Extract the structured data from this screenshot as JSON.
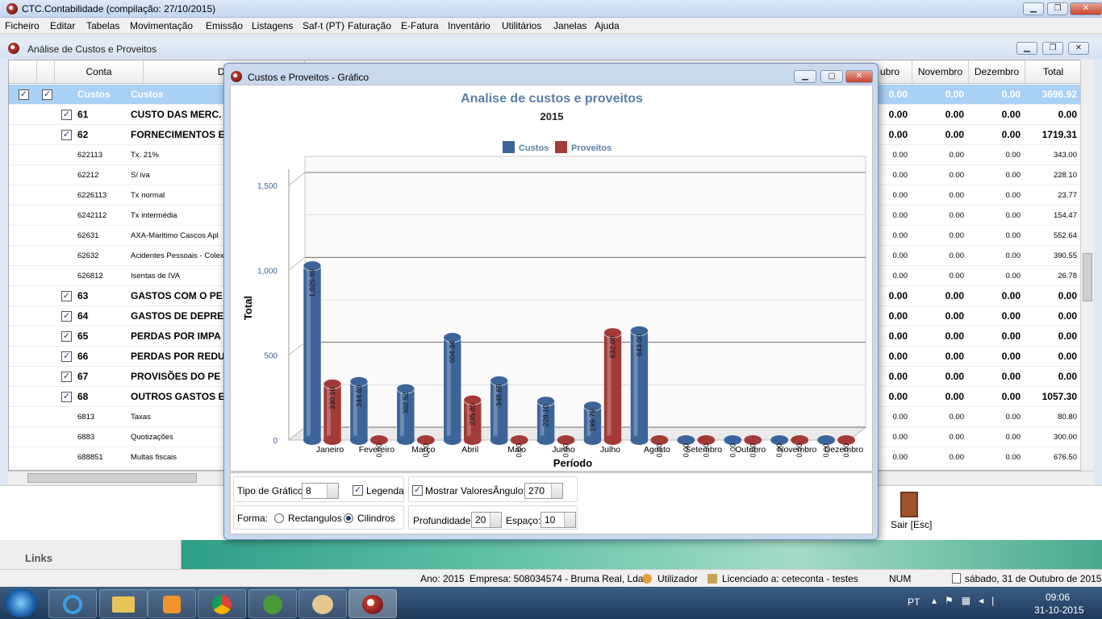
{
  "app": {
    "title": "CTC.Contabilidade (compilação: 27/10/2015)"
  },
  "menu": [
    "Ficheiro",
    "Editar",
    "Tabelas",
    "Movimentação",
    "Emissão",
    "Listagens",
    "Saf-t (PT)",
    "Faturação",
    "E-Fatura",
    "Inventário",
    "Utilitários",
    "Janelas",
    "Ajuda"
  ],
  "child_window": {
    "title": "Análise de Custos e Proveitos"
  },
  "grid": {
    "headers": {
      "conta": "Conta",
      "desc": "De",
      "outubro": "ubro",
      "novembro": "Novembro",
      "dezembro": "Dezembro",
      "total": "Total"
    },
    "rows": [
      {
        "conta": "Custos",
        "desc": "Custos",
        "out": "0.00",
        "nov": "0.00",
        "dez": "0.00",
        "total": "3696.92",
        "level": "sel"
      },
      {
        "conta": "61",
        "desc": "CUSTO DAS MERC.",
        "out": "0.00",
        "nov": "0.00",
        "dez": "0.00",
        "total": "0.00",
        "level": "bold"
      },
      {
        "conta": "62",
        "desc": "FORNECIMENTOS E",
        "out": "0.00",
        "nov": "0.00",
        "dez": "0.00",
        "total": "1719.31",
        "level": "bold"
      },
      {
        "conta": "622113",
        "desc": "Tx. 21%",
        "out": "0.00",
        "nov": "0.00",
        "dez": "0.00",
        "total": "343.00",
        "level": "small"
      },
      {
        "conta": "62212",
        "desc": "S/ iva",
        "out": "0.00",
        "nov": "0.00",
        "dez": "0.00",
        "total": "228.10",
        "level": "small"
      },
      {
        "conta": "6226113",
        "desc": "Tx normal",
        "out": "0.00",
        "nov": "0.00",
        "dez": "0.00",
        "total": "23.77",
        "level": "small"
      },
      {
        "conta": "6242112",
        "desc": "Tx intermédia",
        "out": "0.00",
        "nov": "0.00",
        "dez": "0.00",
        "total": "154.47",
        "level": "small"
      },
      {
        "conta": "62631",
        "desc": "AXA-Maritimo Cascos Apl",
        "out": "0.00",
        "nov": "0.00",
        "dez": "0.00",
        "total": "552.64",
        "level": "small"
      },
      {
        "conta": "62632",
        "desc": "Acidentes Pessoais - Colex",
        "out": "0.00",
        "nov": "0.00",
        "dez": "0.00",
        "total": "390.55",
        "level": "small"
      },
      {
        "conta": "626812",
        "desc": "Isentas de IVA",
        "out": "0.00",
        "nov": "0.00",
        "dez": "0.00",
        "total": "26.78",
        "level": "small"
      },
      {
        "conta": "63",
        "desc": "GASTOS COM O PE",
        "out": "0.00",
        "nov": "0.00",
        "dez": "0.00",
        "total": "0.00",
        "level": "bold"
      },
      {
        "conta": "64",
        "desc": "GASTOS DE DEPRE",
        "out": "0.00",
        "nov": "0.00",
        "dez": "0.00",
        "total": "0.00",
        "level": "bold"
      },
      {
        "conta": "65",
        "desc": "PERDAS POR IMPA",
        "out": "0.00",
        "nov": "0.00",
        "dez": "0.00",
        "total": "0.00",
        "level": "bold"
      },
      {
        "conta": "66",
        "desc": "PERDAS POR REDU",
        "out": "0.00",
        "nov": "0.00",
        "dez": "0.00",
        "total": "0.00",
        "level": "bold"
      },
      {
        "conta": "67",
        "desc": "PROVISÕES DO PE",
        "out": "0.00",
        "nov": "0.00",
        "dez": "0.00",
        "total": "0.00",
        "level": "bold"
      },
      {
        "conta": "68",
        "desc": "OUTROS GASTOS E",
        "out": "0.00",
        "nov": "0.00",
        "dez": "0.00",
        "total": "1057.30",
        "level": "bold"
      },
      {
        "conta": "6813",
        "desc": "Taxas",
        "out": "0.00",
        "nov": "0.00",
        "dez": "0.00",
        "total": "80.80",
        "level": "small"
      },
      {
        "conta": "6883",
        "desc": "Quotizações",
        "out": "0.00",
        "nov": "0.00",
        "dez": "0.00",
        "total": "300.00",
        "level": "small"
      },
      {
        "conta": "688851",
        "desc": "Multas fiscais",
        "out": "0.00",
        "nov": "0.00",
        "dez": "0.00",
        "total": "676.50",
        "level": "small"
      }
    ]
  },
  "dialog": {
    "title": "Custos e Proveitos - Gráfico",
    "controls": {
      "tipo_label": "Tipo de Gráfico:",
      "tipo_value": "8",
      "legenda_label": "Legenda",
      "mostrar_label": "Mostrar Valores",
      "angulo_label": "Ângulo:",
      "angulo_value": "270",
      "forma_label": "Forma:",
      "rect_label": "Rectangulos",
      "cil_label": "Cilindros",
      "prof_label": "Profundidade:",
      "prof_value": "20",
      "espaco_label": "Espaço:",
      "espaco_value": "10"
    }
  },
  "chart_data": {
    "type": "bar",
    "title": "Analise de custos e proveitos",
    "subtitle": "2015",
    "xlabel": "Período",
    "ylabel": "Total",
    "ylim": [
      0,
      1500
    ],
    "yticks": [
      "0",
      "500",
      "1,000",
      "1,500"
    ],
    "legend_position": "top-center",
    "categories": [
      "Janeiro",
      "Fevereiro",
      "Março",
      "Abril",
      "Maio",
      "Junho",
      "Julho",
      "Agosto",
      "Setembro",
      "Outubro",
      "Novembro",
      "Dezembro"
    ],
    "series": [
      {
        "name": "Custos",
        "color": "#3d6499",
        "values": [
          1025.89,
          344.63,
          302.52,
          604.34,
          348.65,
          228.1,
          199.79,
          643.0,
          0,
          0,
          0,
          0
        ],
        "labels": [
          "1,025.89",
          "344.63",
          "302.52",
          "604.34",
          "348.65",
          "228.10",
          "199.79",
          "643.00",
          "0.00",
          "0.00",
          "0.00",
          "0.00"
        ]
      },
      {
        "name": "Proveitos",
        "color": "#a23b38",
        "values": [
          330.19,
          0,
          0,
          235.85,
          0,
          0,
          632.08,
          0,
          0,
          0,
          0,
          0
        ],
        "labels": [
          "330.19",
          "0.00",
          "0.00",
          "235.85",
          "0.00",
          "0.00",
          "632.08",
          "0.00",
          "0.00",
          "0.00",
          "0.00",
          "0.00"
        ]
      }
    ]
  },
  "exit": {
    "label": "Sair [Esc]"
  },
  "links": {
    "label": "Links"
  },
  "status": {
    "ano": "Ano: 2015",
    "empresa": "Empresa: 508034574 - Bruma Real, Lda.",
    "utilizador": "Utilizador",
    "licenciado": "Licenciado a: ceteconta - testes",
    "num": "NUM",
    "data": "sábado, 31 de Outubro de 2015"
  },
  "taskbar": {
    "lang": "PT",
    "time": "09:06",
    "date": "31-10-2015"
  }
}
